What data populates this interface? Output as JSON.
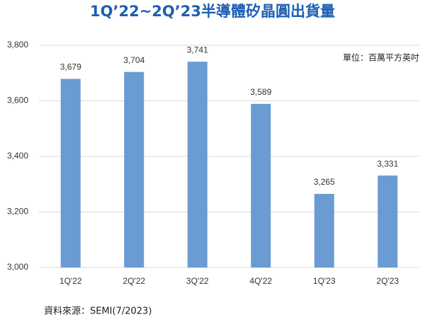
{
  "chart_data": {
    "type": "bar",
    "title": "1Q’22~2Q’23半導體矽晶圓出貨量",
    "unit_note": "單位：百萬平方英吋",
    "source": "資料來源：SEMI(7/2023)",
    "categories": [
      "1Q'22",
      "2Q'22",
      "3Q'22",
      "4Q'22",
      "1Q'23",
      "2Q'23"
    ],
    "values": [
      3679,
      3704,
      3741,
      3589,
      3265,
      3331
    ],
    "value_labels": [
      "3,679",
      "3,704",
      "3,741",
      "3,589",
      "3,265",
      "3,331"
    ],
    "color": "#6a9bd2",
    "ylim": [
      3000,
      3800
    ],
    "yticks": [
      {
        "value": 3000,
        "label": "3,000"
      },
      {
        "value": 3200,
        "label": "3,200"
      },
      {
        "value": 3400,
        "label": "3,400"
      },
      {
        "value": 3600,
        "label": "3,600"
      },
      {
        "value": 3800,
        "label": "3,800"
      }
    ],
    "grid": true
  }
}
